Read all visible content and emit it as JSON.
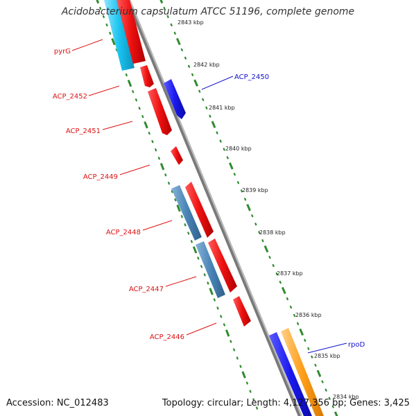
{
  "title": "Acidobacterium capsulatum ATCC 51196, complete genome",
  "accession": "Accession: NC_012483",
  "summary": "Topology: circular; Length: 4,127,356 bp; Genes: 3,425",
  "colors": {
    "backbone": "#888888",
    "tick": "#2e8b2e",
    "gene_red": "#ee1111",
    "gene_blue": "#1a1aee",
    "gene_cyan": "#19c3f0",
    "gene_steel": "#4a86b8",
    "gene_orange": "#ff9f1a",
    "label_red": "#dd1111",
    "label_blue": "#1111cc"
  },
  "scale_labels": [
    "2843 kbp",
    "2842 kbp",
    "2841 kbp",
    "2840 kbp",
    "2839 kbp",
    "2838 kbp",
    "2837 kbp",
    "2836 kbp",
    "2835 kbp",
    "2834 kbp"
  ],
  "gene_labels": [
    {
      "text": "pyrG",
      "color": "red"
    },
    {
      "text": "ACP_2452",
      "color": "red"
    },
    {
      "text": "ACP_2451",
      "color": "red"
    },
    {
      "text": "ACP_2449",
      "color": "red"
    },
    {
      "text": "ACP_2448",
      "color": "red"
    },
    {
      "text": "ACP_2447",
      "color": "red"
    },
    {
      "text": "ACP_2446",
      "color": "red"
    },
    {
      "text": "ACP_2450",
      "color": "blue"
    },
    {
      "text": "rpoD",
      "color": "blue"
    }
  ]
}
